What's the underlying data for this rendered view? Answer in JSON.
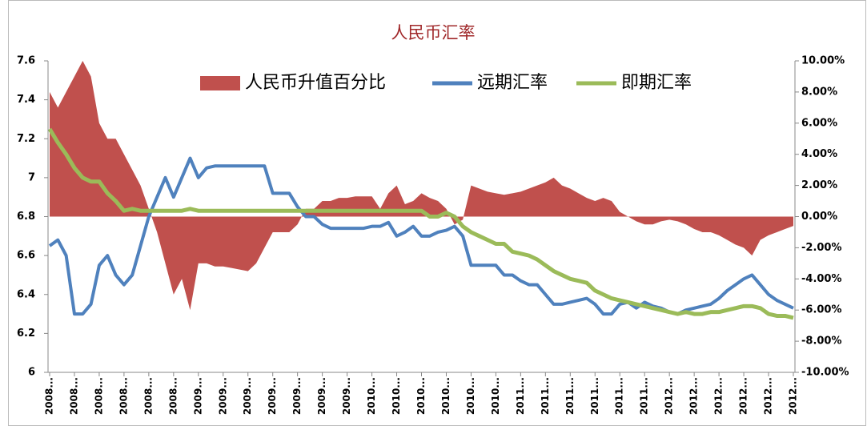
{
  "chart_data": {
    "type": "line",
    "title": "人民币汇率",
    "categories": [
      "2008...",
      null,
      null,
      "2008...",
      null,
      null,
      "2008...",
      null,
      null,
      "2008...",
      null,
      null,
      "2008...",
      null,
      null,
      "2008...",
      null,
      null,
      "2009...",
      null,
      null,
      "2009...",
      null,
      null,
      "2009...",
      null,
      null,
      "2009...",
      null,
      null,
      "2009...",
      null,
      null,
      "2009...",
      null,
      null,
      "2009...",
      null,
      null,
      "2010...",
      null,
      null,
      "2010...",
      null,
      null,
      "2010...",
      null,
      null,
      "2010...",
      null,
      null,
      "2010...",
      null,
      null,
      "2010...",
      null,
      null,
      "2011...",
      null,
      null,
      "2011...",
      null,
      null,
      "2011...",
      null,
      null,
      "2011...",
      null,
      null,
      "2011...",
      null,
      null,
      "2011...",
      null,
      null,
      "2012...",
      null,
      null,
      "2012...",
      null,
      null,
      "2012...",
      null,
      null,
      "2012...",
      null,
      null,
      "2012...",
      null,
      null,
      "2012..."
    ],
    "series": [
      {
        "name": "人民币升值百分比",
        "type": "area",
        "axis": "y2",
        "color": "#c0504d",
        "values": [
          8,
          7,
          8,
          9,
          10,
          9,
          6,
          5,
          5,
          4,
          3,
          2,
          0.5,
          -1,
          -3,
          -5,
          -4,
          -6,
          -3,
          -3,
          -3.2,
          -3.2,
          -3.3,
          -3.4,
          -3.5,
          -3,
          -2,
          -1,
          -1,
          -1,
          -0.5,
          0.5,
          0.5,
          1,
          1,
          1.2,
          1.2,
          1.3,
          1.3,
          1.3,
          0.5,
          1.5,
          2,
          0.8,
          1,
          1.5,
          1.2,
          1,
          0.5,
          -0.5,
          -0.2,
          2,
          1.8,
          1.6,
          1.5,
          1.4,
          1.5,
          1.6,
          1.8,
          2,
          2.2,
          2.5,
          2,
          1.8,
          1.5,
          1.2,
          1,
          1.2,
          1,
          0.3,
          0,
          -0.3,
          -0.5,
          -0.5,
          -0.3,
          -0.2,
          -0.3,
          -0.5,
          -0.8,
          -1,
          -1,
          -1.2,
          -1.5,
          -1.8,
          -2,
          -2.5,
          -1.5,
          -1.2,
          -1,
          -0.8,
          -0.6
        ]
      },
      {
        "name": "远期汇率",
        "type": "line",
        "color": "#4f81bd",
        "values": [
          6.65,
          6.68,
          6.6,
          6.3,
          6.3,
          6.35,
          6.55,
          6.6,
          6.5,
          6.45,
          6.5,
          6.65,
          6.8,
          6.9,
          7.0,
          6.9,
          7.0,
          7.1,
          7.0,
          7.05,
          7.06,
          7.06,
          7.06,
          7.06,
          7.06,
          7.06,
          7.06,
          6.92,
          6.92,
          6.92,
          6.85,
          6.8,
          6.8,
          6.76,
          6.74,
          6.74,
          6.74,
          6.74,
          6.74,
          6.75,
          6.75,
          6.77,
          6.7,
          6.72,
          6.75,
          6.7,
          6.7,
          6.72,
          6.73,
          6.75,
          6.7,
          6.55,
          6.55,
          6.55,
          6.55,
          6.5,
          6.5,
          6.47,
          6.45,
          6.45,
          6.4,
          6.35,
          6.35,
          6.36,
          6.37,
          6.38,
          6.35,
          6.3,
          6.3,
          6.35,
          6.36,
          6.33,
          6.36,
          6.34,
          6.33,
          6.31,
          6.3,
          6.32,
          6.33,
          6.34,
          6.35,
          6.38,
          6.42,
          6.45,
          6.48,
          6.5,
          6.45,
          6.4,
          6.37,
          6.35,
          6.33
        ]
      },
      {
        "name": "即期汇率",
        "type": "line",
        "color": "#9bbb59",
        "values": [
          7.25,
          7.18,
          7.12,
          7.05,
          7.0,
          6.98,
          6.98,
          6.92,
          6.88,
          6.83,
          6.84,
          6.83,
          6.83,
          6.83,
          6.83,
          6.83,
          6.83,
          6.84,
          6.83,
          6.83,
          6.83,
          6.83,
          6.83,
          6.83,
          6.83,
          6.83,
          6.83,
          6.83,
          6.83,
          6.83,
          6.83,
          6.83,
          6.83,
          6.83,
          6.83,
          6.83,
          6.83,
          6.83,
          6.83,
          6.83,
          6.83,
          6.83,
          6.83,
          6.83,
          6.83,
          6.83,
          6.8,
          6.8,
          6.82,
          6.8,
          6.75,
          6.72,
          6.7,
          6.68,
          6.66,
          6.66,
          6.62,
          6.61,
          6.6,
          6.58,
          6.55,
          6.52,
          6.5,
          6.48,
          6.47,
          6.46,
          6.42,
          6.4,
          6.38,
          6.37,
          6.36,
          6.35,
          6.34,
          6.33,
          6.32,
          6.31,
          6.3,
          6.31,
          6.3,
          6.3,
          6.31,
          6.31,
          6.32,
          6.33,
          6.34,
          6.34,
          6.33,
          6.3,
          6.29,
          6.29,
          6.28
        ]
      }
    ],
    "ylim": [
      6,
      7.6
    ],
    "yticks": [
      6,
      6.2,
      6.4,
      6.6,
      6.8,
      7,
      7.2,
      7.4,
      7.6
    ],
    "y2lim": [
      -10,
      10
    ],
    "y2ticks": [
      {
        "value": -10,
        "label": "-10.00%"
      },
      {
        "value": -8,
        "label": "-8.00%"
      },
      {
        "value": -6,
        "label": "-6.00%"
      },
      {
        "value": -4,
        "label": "-4.00%"
      },
      {
        "value": -2,
        "label": "-2.00%"
      },
      {
        "value": 0,
        "label": "0.00%"
      },
      {
        "value": 2,
        "label": "2.00%"
      },
      {
        "value": 4,
        "label": "4.00%"
      },
      {
        "value": 6,
        "label": "6.00%"
      },
      {
        "value": 8,
        "label": "8.00%"
      },
      {
        "value": 10,
        "label": "10.00%"
      }
    ],
    "legend": "top",
    "grid": false
  }
}
